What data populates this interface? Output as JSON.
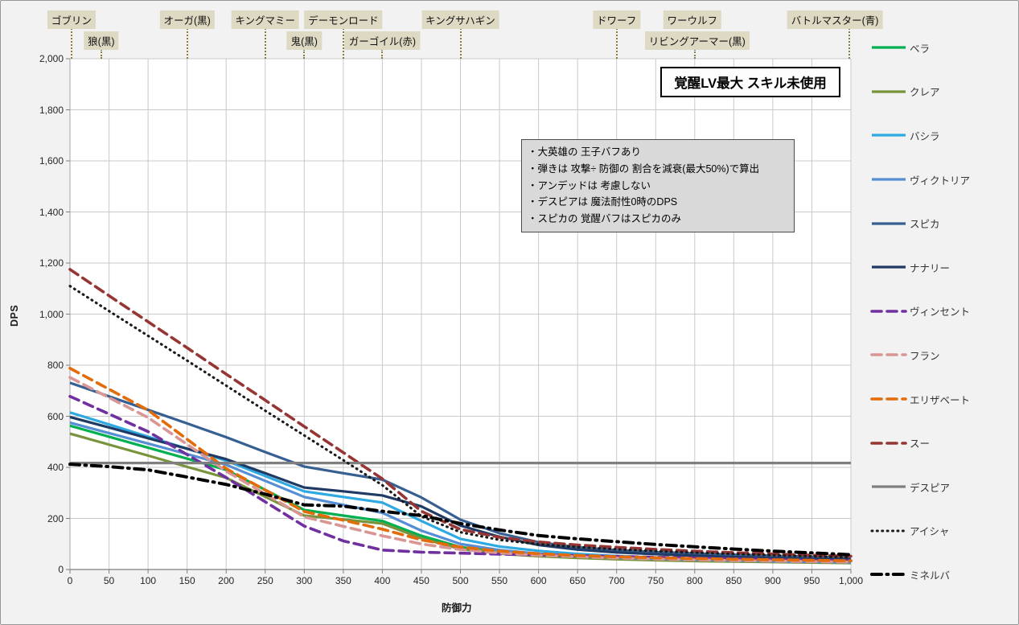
{
  "figure": {
    "bg": "#F2F2F2",
    "plot_bg": "#FFFFFF",
    "grid_color": "#C9C9C9",
    "axis_color": "#7F7F7F",
    "enemy_label_bg": "#DDD9C3",
    "enemy_line_color": "#8C7F3C"
  },
  "title_box": {
    "text": "覚醒LV最大 スキル未使用"
  },
  "notes_box": {
    "lines": [
      "・大英雄の 王子バフあり",
      "・弾きは 攻撃÷ 防御の 割合を減衰(最大50%)で算出",
      "・アンデッドは 考慮しない",
      "・デスピアは 魔法耐性0時のDPS",
      "・スピカの 覚醒バフはスピカのみ"
    ]
  },
  "axes": {
    "y_title": "DPS",
    "x_title": "防御力",
    "y_ticks": [
      "2,000",
      "1,800",
      "1,600",
      "1,400",
      "1,200",
      "1,000",
      "800",
      "600",
      "400",
      "200",
      "0"
    ],
    "x_ticks": [
      "0",
      "50",
      "100",
      "150",
      "200",
      "250",
      "300",
      "350",
      "400",
      "450",
      "500",
      "550",
      "600",
      "650",
      "700",
      "750",
      "800",
      "850",
      "900",
      "950",
      "1,000"
    ]
  },
  "enemy_markers": [
    {
      "label": "ゴブリン",
      "defense": 2,
      "row": 1,
      "line": true,
      "label_shift": 0
    },
    {
      "label": "狼(黒)",
      "defense": 40,
      "row": 2,
      "line": true,
      "label_shift": 0
    },
    {
      "label": "オーガ(黒)",
      "defense": 150,
      "row": 1,
      "line": true,
      "label_shift": 0
    },
    {
      "label": "キングマミー",
      "defense": 250,
      "row": 1,
      "line": true,
      "label_shift": 0
    },
    {
      "label": "鬼(黒)",
      "defense": 300,
      "row": 2,
      "line": true,
      "label_shift": 0
    },
    {
      "label": "デーモンロード",
      "defense": 350,
      "row": 1,
      "line": true,
      "label_shift": 0
    },
    {
      "label": "ガーゴイル(赤)",
      "defense": 400,
      "row": 2,
      "line": true,
      "label_shift": 0
    },
    {
      "label": "キングサハギン",
      "defense": 500,
      "row": 1,
      "line": true,
      "label_shift": 0
    },
    {
      "label": "ドワーフ",
      "defense": 700,
      "row": 1,
      "line": true,
      "label_shift": 0
    },
    {
      "label": "ワーウルフ",
      "defense": 800,
      "row": 1,
      "line": false,
      "label_shift": -3
    },
    {
      "label": "リビングアーマー(黒)",
      "defense": 800,
      "row": 2,
      "line": true,
      "label_shift": 3
    },
    {
      "label": "バトルマスター(青)",
      "defense": 998,
      "row": 1,
      "line": true,
      "label_shift": -18
    }
  ],
  "chart_data": {
    "type": "line",
    "title": "覚醒LV最大 スキル未使用",
    "xlabel": "防御力",
    "ylabel": "DPS",
    "xlim": [
      0,
      1000
    ],
    "ylim": [
      0,
      2000
    ],
    "x_tick_step": 50,
    "y_tick_step": 200,
    "grid": true,
    "legend_position": "right",
    "x": [
      0,
      50,
      100,
      150,
      200,
      250,
      300,
      350,
      400,
      450,
      500,
      550,
      600,
      650,
      700,
      750,
      800,
      850,
      900,
      950,
      1000
    ],
    "series": [
      {
        "name": "ベラ",
        "color": "#00B050",
        "pattern": "solid",
        "values": [
          563,
          520,
          477,
          434,
          390,
          312,
          233,
          211,
          190,
          132,
          88,
          68,
          56,
          48,
          43,
          39,
          36,
          33,
          31,
          29,
          27
        ]
      },
      {
        "name": "クレア",
        "color": "#77933C",
        "pattern": "solid",
        "values": [
          532,
          489,
          446,
          402,
          359,
          285,
          211,
          196,
          180,
          122,
          80,
          62,
          52,
          45,
          40,
          36,
          33,
          31,
          29,
          27,
          25
        ]
      },
      {
        "name": "バシラ",
        "color": "#2FA9E1",
        "pattern": "solid",
        "values": [
          615,
          568,
          520,
          473,
          426,
          366,
          306,
          284,
          262,
          190,
          120,
          90,
          73,
          61,
          53,
          47,
          43,
          39,
          36,
          33,
          31
        ]
      },
      {
        "name": "ヴィクトリア",
        "color": "#558ED5",
        "pattern": "solid",
        "values": [
          575,
          534,
          493,
          452,
          410,
          347,
          284,
          253,
          222,
          152,
          100,
          76,
          62,
          53,
          47,
          42,
          38,
          35,
          32,
          30,
          28
        ]
      },
      {
        "name": "スピカ",
        "color": "#376092",
        "pattern": "solid",
        "values": [
          731,
          678,
          625,
          572,
          518,
          460,
          403,
          377,
          352,
          282,
          195,
          142,
          107,
          87,
          76,
          68,
          63,
          58,
          54,
          50,
          47
        ]
      },
      {
        "name": "ナナリー",
        "color": "#1F3A64",
        "pattern": "solid",
        "values": [
          597,
          556,
          514,
          473,
          432,
          377,
          321,
          306,
          290,
          247,
          172,
          128,
          96,
          78,
          67,
          60,
          54,
          49,
          45,
          42,
          39
        ]
      },
      {
        "name": "ヴィンセント",
        "color": "#7030A0",
        "pattern": "dashed",
        "values": [
          678,
          609,
          540,
          450,
          360,
          265,
          170,
          112,
          76,
          68,
          64,
          60,
          57,
          54,
          51,
          48,
          45,
          42,
          39,
          36,
          34
        ]
      },
      {
        "name": "フラン",
        "color": "#D99694",
        "pattern": "dashed",
        "values": [
          752,
          673,
          595,
          490,
          385,
          296,
          206,
          169,
          132,
          100,
          78,
          65,
          56,
          50,
          45,
          41,
          38,
          35,
          33,
          31,
          29
        ]
      },
      {
        "name": "エリザベート",
        "color": "#E26B0A",
        "pattern": "dashed",
        "values": [
          788,
          706,
          624,
          510,
          395,
          311,
          227,
          193,
          158,
          116,
          88,
          72,
          62,
          55,
          50,
          46,
          43,
          40,
          38,
          36,
          34
        ]
      },
      {
        "name": "スー",
        "color": "#963634",
        "pattern": "dashed",
        "values": [
          1175,
          1072,
          970,
          868,
          765,
          663,
          560,
          458,
          355,
          228,
          157,
          126,
          108,
          96,
          87,
          79,
          72,
          66,
          61,
          56,
          52
        ]
      },
      {
        "name": "デスピア",
        "color": "#7F7F7F",
        "pattern": "solid",
        "values": [
          417,
          417,
          417,
          417,
          417,
          417,
          417,
          417,
          417,
          417,
          417,
          417,
          417,
          417,
          417,
          417,
          417,
          417,
          417,
          417,
          417
        ]
      },
      {
        "name": "アイシャ",
        "color": "#1A1A1A",
        "pattern": "dotted",
        "values": [
          1110,
          1012,
          915,
          818,
          720,
          622,
          525,
          428,
          330,
          208,
          146,
          116,
          99,
          88,
          79,
          72,
          66,
          61,
          56,
          52,
          48
        ]
      },
      {
        "name": "ミネルバ",
        "color": "#000000",
        "pattern": "dashdot",
        "values": [
          412,
          403,
          390,
          362,
          333,
          295,
          253,
          248,
          228,
          211,
          180,
          155,
          133,
          120,
          109,
          98,
          89,
          80,
          72,
          65,
          58
        ]
      }
    ]
  }
}
